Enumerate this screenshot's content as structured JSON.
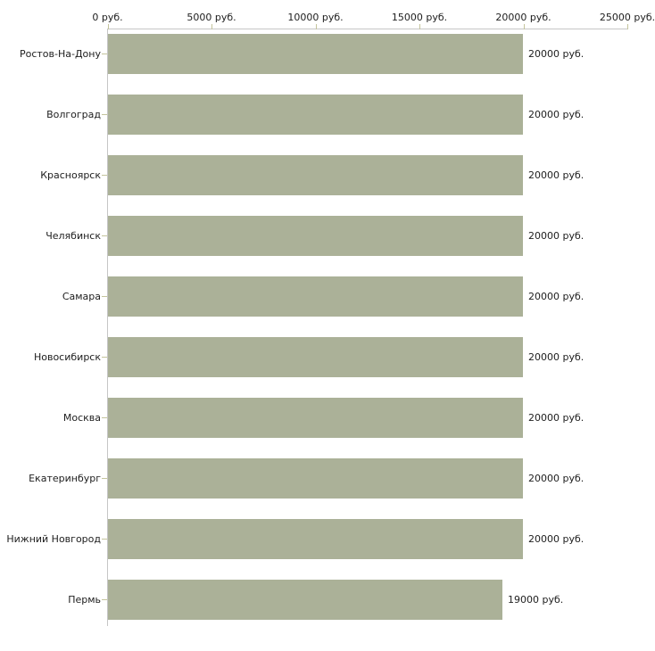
{
  "chart_data": {
    "type": "bar",
    "orientation": "horizontal",
    "title": "",
    "xlabel": "",
    "ylabel": "",
    "unit": "руб.",
    "categories": [
      "Ростов-На-Дону",
      "Волгоград",
      "Красноярск",
      "Челябинск",
      "Самара",
      "Новосибирск",
      "Москва",
      "Екатеринбург",
      "Нижний Новгород",
      "Пермь"
    ],
    "values": [
      20000,
      20000,
      20000,
      20000,
      20000,
      20000,
      20000,
      20000,
      20000,
      19000
    ],
    "value_labels": [
      "20000 руб.",
      "20000 руб.",
      "20000 руб.",
      "20000 руб.",
      "20000 руб.",
      "20000 руб.",
      "20000 руб.",
      "20000 руб.",
      "20000 руб.",
      "19000 руб."
    ],
    "x_axis": {
      "position": "top",
      "range": [
        0,
        25000
      ],
      "ticks": [
        0,
        5000,
        10000,
        15000,
        20000,
        25000
      ],
      "tick_labels": [
        "0 руб.",
        "5000 руб.",
        "10000 руб.",
        "15000 руб.",
        "20000 руб.",
        "25000 руб."
      ]
    },
    "grid": false,
    "legend": false,
    "colors": {
      "bar": "#abb198",
      "axis_line": "#c6c6c6",
      "tick_mark": "#c4c49c",
      "text": "#202020",
      "background": "#ffffff"
    }
  }
}
